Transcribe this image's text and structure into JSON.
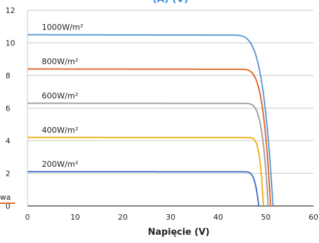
{
  "chart_data": {
    "type": "line",
    "title": "(A) (V)",
    "xlabel": "Napięcie (V)",
    "ylabel": "",
    "xlim": [
      0,
      60
    ],
    "ylim": [
      0,
      12
    ],
    "x_ticks": [
      0,
      10,
      20,
      30,
      40,
      50,
      60
    ],
    "y_ticks": [
      0,
      2,
      4,
      6,
      8,
      10,
      12
    ],
    "grid": "horizontal",
    "legend_fragment": "wa",
    "series": [
      {
        "label": "1000W/m²",
        "color": "#5b9bd5",
        "isc": 10.5,
        "voc": 51.5,
        "knee": 42.0,
        "label_x": 3.0
      },
      {
        "label": "800W/m²",
        "color": "#e06a2c",
        "isc": 8.4,
        "voc": 51.0,
        "knee": 44.0,
        "label_x": 3.0
      },
      {
        "label": "600W/m²",
        "color": "#a0a0a0",
        "isc": 6.3,
        "voc": 50.5,
        "knee": 45.0,
        "label_x": 3.0
      },
      {
        "label": "400W/m²",
        "color": "#f2b21c",
        "isc": 4.2,
        "voc": 49.5,
        "knee": 46.0,
        "label_x": 3.0
      },
      {
        "label": "200W/m²",
        "color": "#4472c4",
        "isc": 2.1,
        "voc": 48.5,
        "knee": 45.0,
        "label_x": 3.0
      }
    ],
    "colors": {
      "title": "#3d8fd6",
      "grid": "#c8c8c8",
      "axis": "#333333",
      "legend_line": "#e06a2c"
    }
  }
}
